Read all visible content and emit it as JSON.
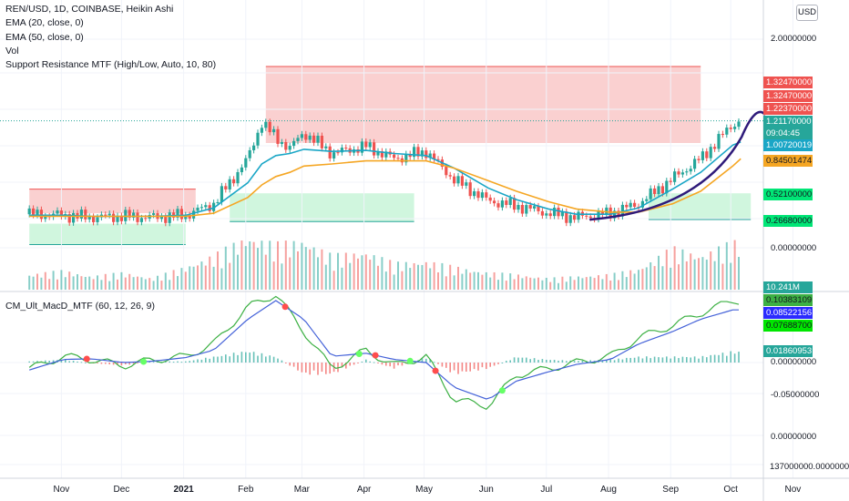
{
  "header": {
    "symbol_line": "REN/USD, 1D, COINBASE, Heikin Ashi",
    "indicators": [
      "EMA (20, close, 0)",
      "EMA (50, close, 0)",
      "Vol",
      "Support Resistance MTF (High/Low, Auto, 10, 80)"
    ],
    "currency_button": "USD"
  },
  "lower_pane": {
    "indicator_label": "CM_Ult_MacD_MTF (60, 12, 26, 9)"
  },
  "colors": {
    "candle_up": "#26a69a",
    "candle_down": "#ef5350",
    "ema20": "#1aa6c6",
    "ema50": "#f5a623",
    "resistance_fill": "#f9c8c8",
    "support_fill": "#c8f4d8",
    "drawing": "#2e1a7a",
    "macd_line": "#3cb043",
    "signal_line": "#4361d8"
  },
  "chart_data": [
    {
      "type": "line",
      "name": "price",
      "x_axis_ticks": [
        "Nov",
        "Dec",
        "2021",
        "Feb",
        "Mar",
        "Apr",
        "May",
        "Jun",
        "Jul",
        "Aug",
        "Sep",
        "Oct",
        "Nov"
      ],
      "y_ticks": [
        "2.00000000",
        "0.00000000"
      ],
      "x": [
        "Oct 15",
        "Nov 1",
        "Nov 15",
        "Dec 1",
        "Dec 15",
        "Jan 1",
        "Jan 15",
        "Feb 1",
        "Feb 8",
        "Feb 15",
        "Feb 22",
        "Mar 1",
        "Mar 15",
        "Apr 1",
        "Apr 15",
        "May 1",
        "May 15",
        "Jun 1",
        "Jun 15",
        "Jul 1",
        "Jul 15",
        "Aug 1",
        "Aug 15",
        "Sep 1",
        "Sep 15",
        "Oct 1",
        "Oct 5"
      ],
      "close": [
        0.32,
        0.31,
        0.29,
        0.3,
        0.29,
        0.31,
        0.42,
        0.85,
        1.2,
        1.05,
        0.95,
        1.1,
        0.9,
        0.97,
        0.85,
        0.92,
        0.65,
        0.45,
        0.4,
        0.33,
        0.29,
        0.33,
        0.42,
        0.66,
        0.85,
        1.18,
        1.21
      ],
      "series": [
        {
          "name": "EMA (20, close, 0)",
          "values": [
            0.31,
            0.31,
            0.3,
            0.3,
            0.3,
            0.31,
            0.38,
            0.62,
            0.8,
            0.88,
            0.9,
            0.94,
            0.92,
            0.93,
            0.9,
            0.88,
            0.76,
            0.57,
            0.46,
            0.37,
            0.32,
            0.32,
            0.38,
            0.56,
            0.72,
            0.98,
            1.01
          ]
        },
        {
          "name": "EMA (50, close, 0)",
          "values": [
            0.3,
            0.3,
            0.3,
            0.3,
            0.3,
            0.3,
            0.33,
            0.48,
            0.6,
            0.68,
            0.72,
            0.78,
            0.8,
            0.83,
            0.83,
            0.83,
            0.76,
            0.64,
            0.54,
            0.44,
            0.37,
            0.34,
            0.34,
            0.42,
            0.54,
            0.78,
            0.85
          ]
        }
      ],
      "resistance_zones": [
        {
          "from": "Oct 15",
          "to": "Jan 6",
          "low": 0.33,
          "high": 0.56
        },
        {
          "from": "Feb 10",
          "to": "Sep 15",
          "low": 1.0,
          "high": 1.73
        }
      ],
      "support_zones": [
        {
          "from": "Oct 15",
          "to": "Jan 1",
          "low": 0.03,
          "high": 0.23
        },
        {
          "from": "Jan 23",
          "to": "Apr 25",
          "low": 0.25,
          "high": 0.52
        },
        {
          "from": "Aug 20",
          "to": "Oct 10",
          "low": 0.27,
          "high": 0.52
        }
      ],
      "price_labels": [
        "1.32470000",
        "1.32470000",
        "1.22370000",
        "1.21170000",
        "09:04:45",
        "1.00720019",
        "0.84501474",
        "0.52100000",
        "0.26680000"
      ],
      "drawn_curve": {
        "from": "Jul 22",
        "to": "Oct 10",
        "start_value": 0.27,
        "end_value": 1.32
      }
    },
    {
      "type": "bar",
      "name": "volume",
      "last_value_label": "10.241M",
      "x": [
        "Oct 15",
        "Nov 1",
        "Nov 15",
        "Dec 1",
        "Dec 15",
        "Jan 1",
        "Jan 15",
        "Feb 1",
        "Feb 15",
        "Mar 1",
        "Mar 15",
        "Apr 1",
        "Apr 15",
        "May 1",
        "May 15",
        "Jun 1",
        "Jun 15",
        "Jul 1",
        "Jul 15",
        "Aug 1",
        "Aug 15",
        "Sep 1",
        "Sep 15",
        "Oct 1"
      ],
      "values": [
        8,
        10,
        7,
        9,
        6,
        12,
        18,
        28,
        24,
        26,
        18,
        20,
        14,
        15,
        12,
        9,
        8,
        6,
        7,
        8,
        11,
        22,
        18,
        25
      ]
    },
    {
      "type": "line",
      "name": "CM_Ult_MacD_MTF",
      "y_ticks": [
        "-0.05000000",
        "0.00000000",
        "137000000.00000000"
      ],
      "value_labels": [
        "0.10383109",
        "0.08522156",
        "0.07688700",
        "0.01860953",
        "0.00000000"
      ],
      "x": [
        "Oct 15",
        "Nov 1",
        "Nov 15",
        "Dec 1",
        "Dec 15",
        "Jan 1",
        "Jan 15",
        "Feb 1",
        "Feb 15",
        "Mar 1",
        "Mar 15",
        "Apr 1",
        "Apr 15",
        "May 1",
        "May 15",
        "Jun 1",
        "Jun 15",
        "Jul 1",
        "Jul 15",
        "Aug 1",
        "Aug 15",
        "Sep 1",
        "Sep 15",
        "Oct 1"
      ],
      "series": [
        {
          "name": "MACD",
          "values": [
            -0.01,
            0.01,
            0.005,
            -0.005,
            0.004,
            0.01,
            0.03,
            0.09,
            0.11,
            0.05,
            -0.01,
            0.02,
            -0.005,
            0.01,
            -0.06,
            -0.07,
            -0.02,
            -0.01,
            0.0,
            0.01,
            0.04,
            0.06,
            0.08,
            0.1
          ]
        },
        {
          "name": "Signal",
          "values": [
            -0.012,
            0.005,
            0.006,
            0.0,
            0.002,
            0.008,
            0.02,
            0.07,
            0.1,
            0.07,
            0.01,
            0.015,
            0.005,
            0.0,
            -0.04,
            -0.06,
            -0.03,
            -0.015,
            -0.003,
            0.005,
            0.03,
            0.05,
            0.07,
            0.085
          ]
        }
      ],
      "histogram": [
        0.002,
        0.005,
        -0.001,
        -0.005,
        0.002,
        0.002,
        0.01,
        0.02,
        0.01,
        -0.02,
        -0.02,
        0.005,
        -0.01,
        0.01,
        -0.02,
        -0.01,
        0.01,
        0.005,
        0.003,
        0.005,
        0.01,
        0.01,
        0.01,
        0.019
      ]
    }
  ]
}
